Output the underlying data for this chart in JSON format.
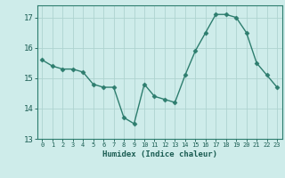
{
  "x": [
    0,
    1,
    2,
    3,
    4,
    5,
    6,
    7,
    8,
    9,
    10,
    11,
    12,
    13,
    14,
    15,
    16,
    17,
    18,
    19,
    20,
    21,
    22,
    23
  ],
  "y": [
    15.6,
    15.4,
    15.3,
    15.3,
    15.2,
    14.8,
    14.7,
    14.7,
    13.7,
    13.5,
    14.8,
    14.4,
    14.3,
    14.2,
    15.1,
    15.9,
    16.5,
    17.1,
    17.1,
    17.0,
    16.5,
    15.5,
    15.1,
    14.7
  ],
  "xlim": [
    -0.5,
    23.5
  ],
  "ylim": [
    13,
    17.4
  ],
  "yticks": [
    13,
    14,
    15,
    16,
    17
  ],
  "xticks": [
    0,
    1,
    2,
    3,
    4,
    5,
    6,
    7,
    8,
    9,
    10,
    11,
    12,
    13,
    14,
    15,
    16,
    17,
    18,
    19,
    20,
    21,
    22,
    23
  ],
  "xlabel": "Humidex (Indice chaleur)",
  "line_color": "#2d7d6e",
  "marker_color": "#2d7d6e",
  "bg_color": "#ceecea",
  "grid_color": "#aed4d0",
  "axis_color": "#2d7d6e",
  "tick_color": "#1a5c52",
  "label_color": "#1a5c52"
}
